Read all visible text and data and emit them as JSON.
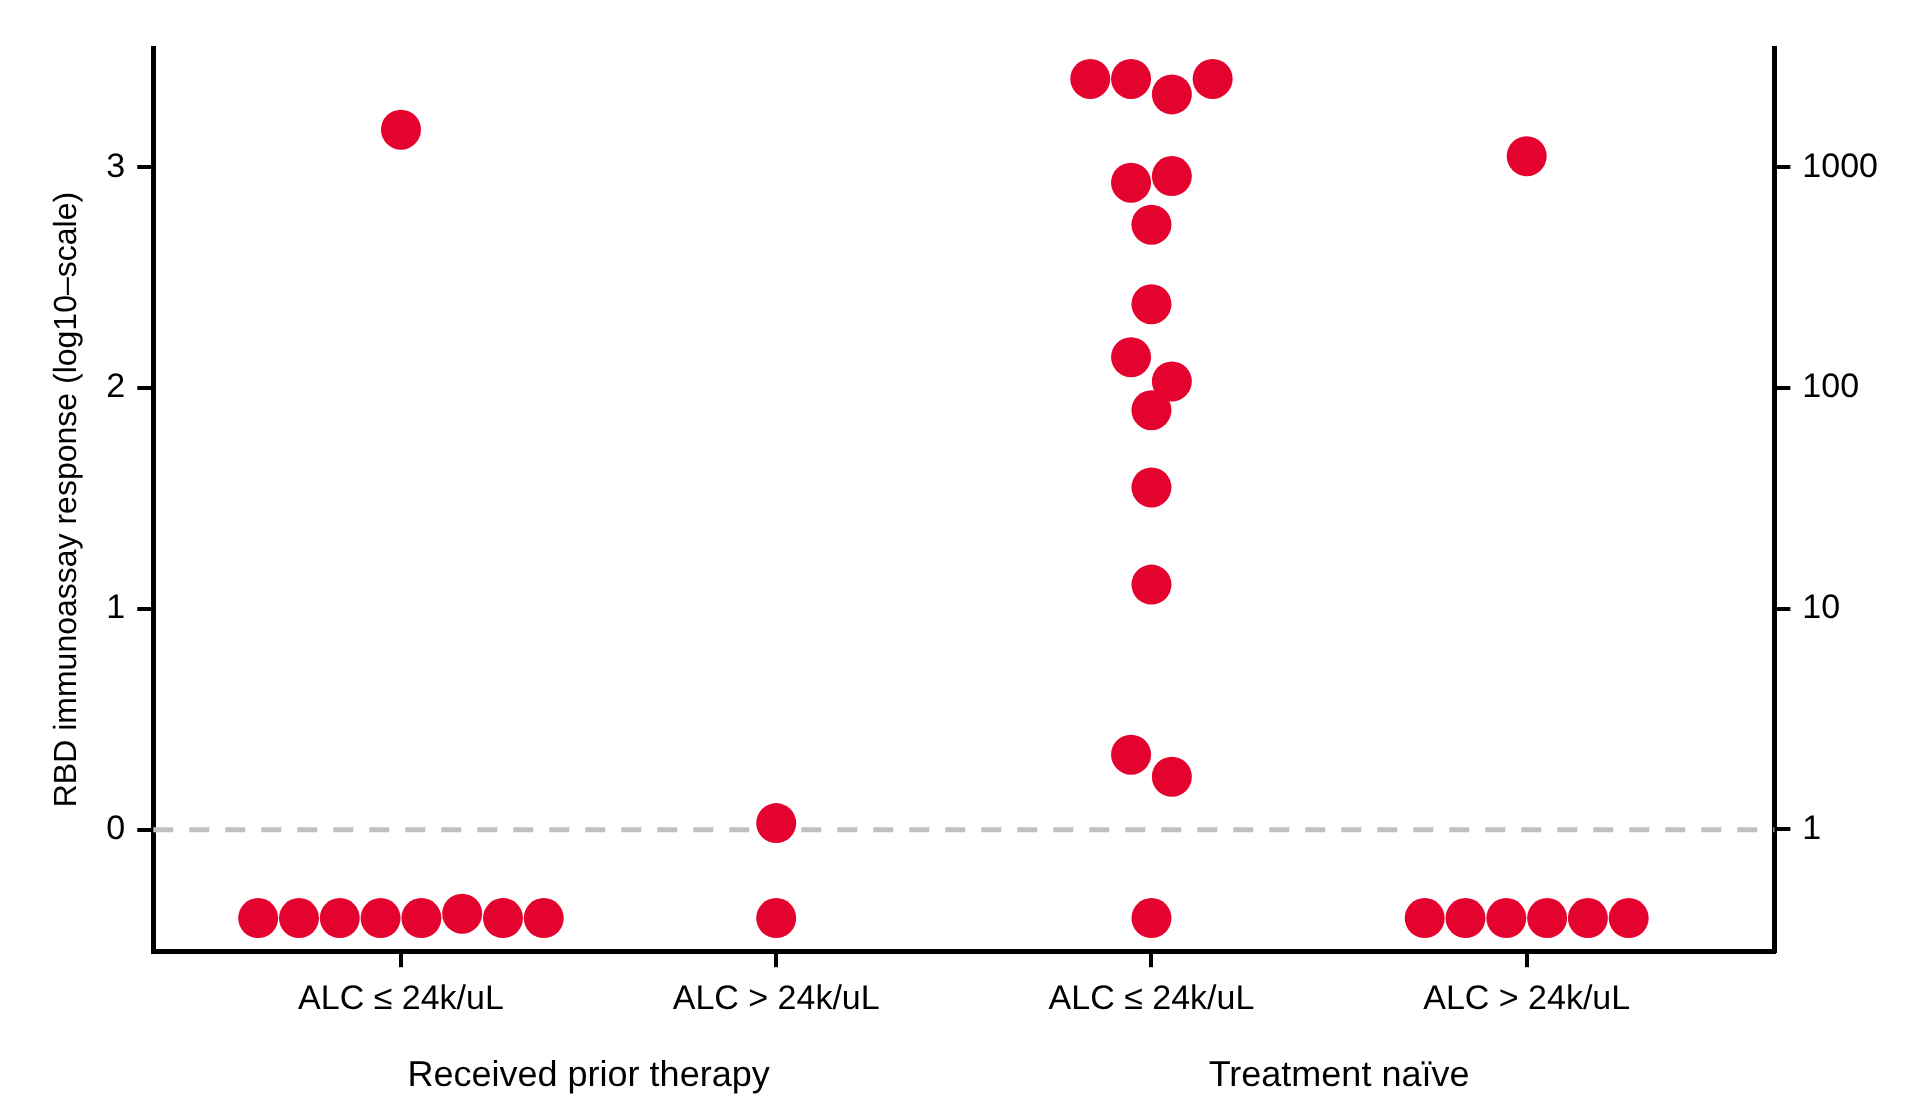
{
  "chart_data": {
    "type": "scatter",
    "ylabel": "RBD immunoassay response (log10–scale)",
    "categories": [
      "ALC ≤ 24k/uL",
      "ALC > 24k/uL",
      "ALC ≤ 24k/uL",
      "ALC > 24k/uL"
    ],
    "series": [
      {
        "color": "#e4032e",
        "values": [
          3.17,
          0.03,
          3.4,
          3.05
        ]
      },
      {
        "color": "#e4032e",
        "values": [
          -0.4,
          -0.4,
          3.4,
          -0.4
        ]
      },
      {
        "color": "#e4032e",
        "values": [
          -0.4,
          null,
          3.33,
          -0.4
        ]
      },
      {
        "color": "#e4032e",
        "values": [
          -0.4,
          null,
          3.4,
          -0.4
        ]
      },
      {
        "color": "#e4032e",
        "values": [
          -0.4,
          null,
          2.93,
          -0.4
        ]
      },
      {
        "color": "#e4032e",
        "values": [
          -0.4,
          null,
          2.96,
          -0.4
        ]
      },
      {
        "color": "#e4032e",
        "values": [
          -0.38,
          null,
          2.74,
          -0.4
        ]
      },
      {
        "color": "#e4032e",
        "values": [
          -0.4,
          null,
          2.38,
          null
        ]
      },
      {
        "color": "#e4032e",
        "values": [
          -0.4,
          null,
          2.14,
          null
        ]
      },
      {
        "color": "#e4032e",
        "values": [
          null,
          null,
          2.03,
          null
        ]
      },
      {
        "color": "#e4032e",
        "values": [
          null,
          null,
          1.9,
          null
        ]
      },
      {
        "color": "#e4032e",
        "values": [
          null,
          null,
          1.55,
          null
        ]
      },
      {
        "color": "#e4032e",
        "values": [
          null,
          null,
          1.11,
          null
        ]
      },
      {
        "color": "#e4032e",
        "values": [
          null,
          null,
          0.34,
          null
        ]
      },
      {
        "color": "#e4032e",
        "values": [
          null,
          null,
          0.24,
          null
        ]
      },
      {
        "color": "#e4032e",
        "values": [
          null,
          null,
          -0.4,
          null
        ]
      }
    ],
    "ylim": [
      -0.55,
      3.54
    ],
    "yticks": [
      0,
      1,
      2,
      3
    ],
    "y2lim": [
      0.28,
      3467
    ],
    "y2ticks": [
      1,
      10,
      100,
      1000
    ],
    "log": "y2",
    "ref_lines": [
      {
        "axis": "y",
        "value": 0,
        "color": "#c0c0c0",
        "line_style": "dashed"
      }
    ],
    "annotations": [
      "Received prior therapy",
      "Treatment naïve"
    ],
    "marker": "circle",
    "grid": false,
    "legend": false
  }
}
